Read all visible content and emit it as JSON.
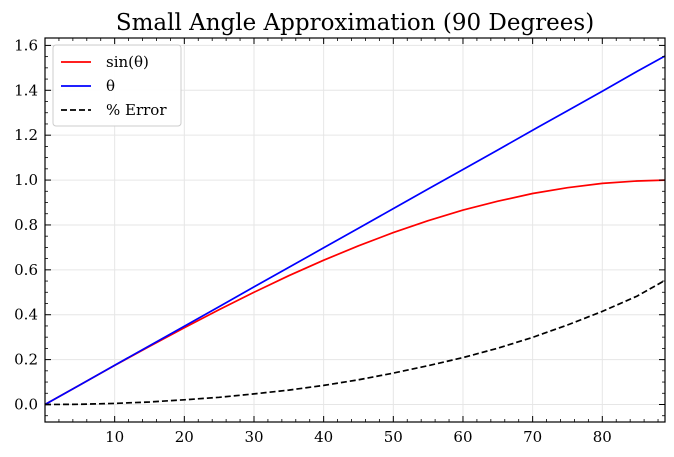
{
  "chart_data": {
    "type": "line",
    "title": "Small Angle Approximation (90 Degrees)",
    "xlabel": "",
    "ylabel": "",
    "xlim": [
      0,
      89
    ],
    "ylim": [
      -0.078,
      1.633
    ],
    "xticks": [
      10,
      20,
      30,
      40,
      50,
      60,
      70,
      80
    ],
    "yticks": [
      0.0,
      0.2,
      0.4,
      0.6,
      0.8,
      1.0,
      1.2,
      1.4,
      1.6
    ],
    "grid": true,
    "legend_position": "top-left",
    "series": [
      {
        "name": "sin(θ)",
        "color": "#ff0000",
        "style": "solid",
        "x": [
          0,
          5,
          10,
          15,
          20,
          25,
          30,
          35,
          40,
          45,
          50,
          55,
          60,
          65,
          70,
          75,
          80,
          85,
          89
        ],
        "y": [
          0.0,
          0.087,
          0.174,
          0.259,
          0.342,
          0.423,
          0.5,
          0.574,
          0.643,
          0.707,
          0.766,
          0.819,
          0.866,
          0.906,
          0.94,
          0.966,
          0.985,
          0.996,
          1.0
        ]
      },
      {
        "name": "θ",
        "color": "#0000ff",
        "style": "solid",
        "x": [
          0,
          5,
          10,
          15,
          20,
          25,
          30,
          35,
          40,
          45,
          50,
          55,
          60,
          65,
          70,
          75,
          80,
          85,
          89
        ],
        "y": [
          0.0,
          0.087,
          0.175,
          0.262,
          0.349,
          0.436,
          0.524,
          0.611,
          0.698,
          0.785,
          0.873,
          0.96,
          1.047,
          1.134,
          1.222,
          1.309,
          1.396,
          1.484,
          1.553
        ]
      },
      {
        "name": "% Error",
        "color": "#000000",
        "style": "dashed",
        "x": [
          0,
          5,
          10,
          15,
          20,
          25,
          30,
          35,
          40,
          45,
          50,
          55,
          60,
          65,
          70,
          75,
          80,
          85,
          89
        ],
        "y": [
          0.0,
          0.001,
          0.005,
          0.011,
          0.021,
          0.032,
          0.047,
          0.064,
          0.085,
          0.11,
          0.14,
          0.173,
          0.209,
          0.251,
          0.299,
          0.354,
          0.415,
          0.483,
          0.553
        ]
      }
    ]
  }
}
